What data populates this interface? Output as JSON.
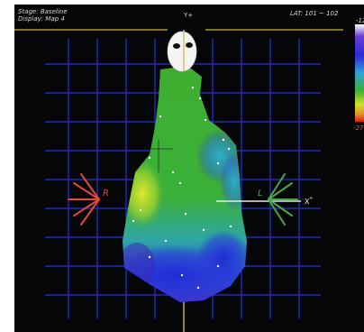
{
  "header": {
    "stage_prefix": "Stage:",
    "stage_value": "Baseline",
    "display_prefix": "Display:",
    "display_value": "Map 4",
    "orientation_y": "Y+",
    "lat_label": "LAT:",
    "lat_range": "101 ~ 102"
  },
  "legend": {
    "top_label": "-12",
    "bottom_label": "-27"
  },
  "orientation": {
    "right_label": "R",
    "left_label": "L",
    "x_axis_label": "X"
  },
  "colors": {
    "background": "#050608",
    "grid": "#2233dd",
    "header_line": "#c9b43a",
    "right_marker": "#e4473c",
    "left_marker": "#49a84a",
    "map_green": "#3fae2e",
    "map_yellow": "#cfe12a",
    "map_cyan": "#2fa6d8",
    "map_blue": "#2a2ad8",
    "map_purple": "#5a2ab8"
  }
}
